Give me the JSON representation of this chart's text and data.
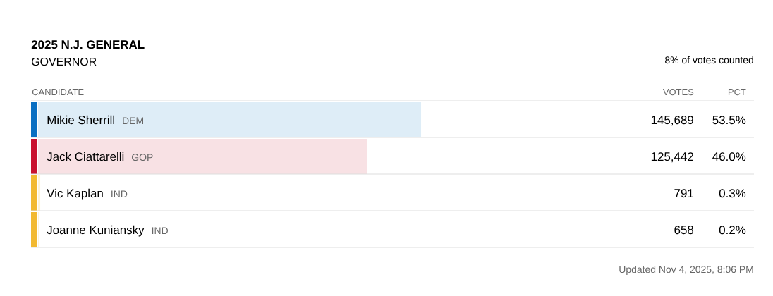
{
  "chart_data": {
    "type": "bar",
    "orientation": "horizontal",
    "title": "2025 N.J. GENERAL",
    "subtitle": "GOVERNOR",
    "categories": [
      "Mikie Sherrill",
      "Jack Ciattarelli",
      "Vic Kaplan",
      "Joanne Kuniansky"
    ],
    "values": [
      53.5,
      46.0,
      0.3,
      0.2
    ],
    "value_labels": [
      "53.5%",
      "46.0%",
      "0.3%",
      "0.2%"
    ],
    "colors": [
      "#deedf7",
      "#f8e1e4",
      "#fdf3d8",
      "#fdf3d8"
    ],
    "xlim": [
      0,
      100
    ],
    "annotations": [
      "8% of votes counted",
      "CANDIDATE",
      "VOTES",
      "PCT",
      "DEM",
      "GOP",
      "IND",
      "IND",
      "145,689",
      "125,442",
      "791",
      "658",
      "Updated Nov 4, 2025, 8:06 PM"
    ]
  }
}
